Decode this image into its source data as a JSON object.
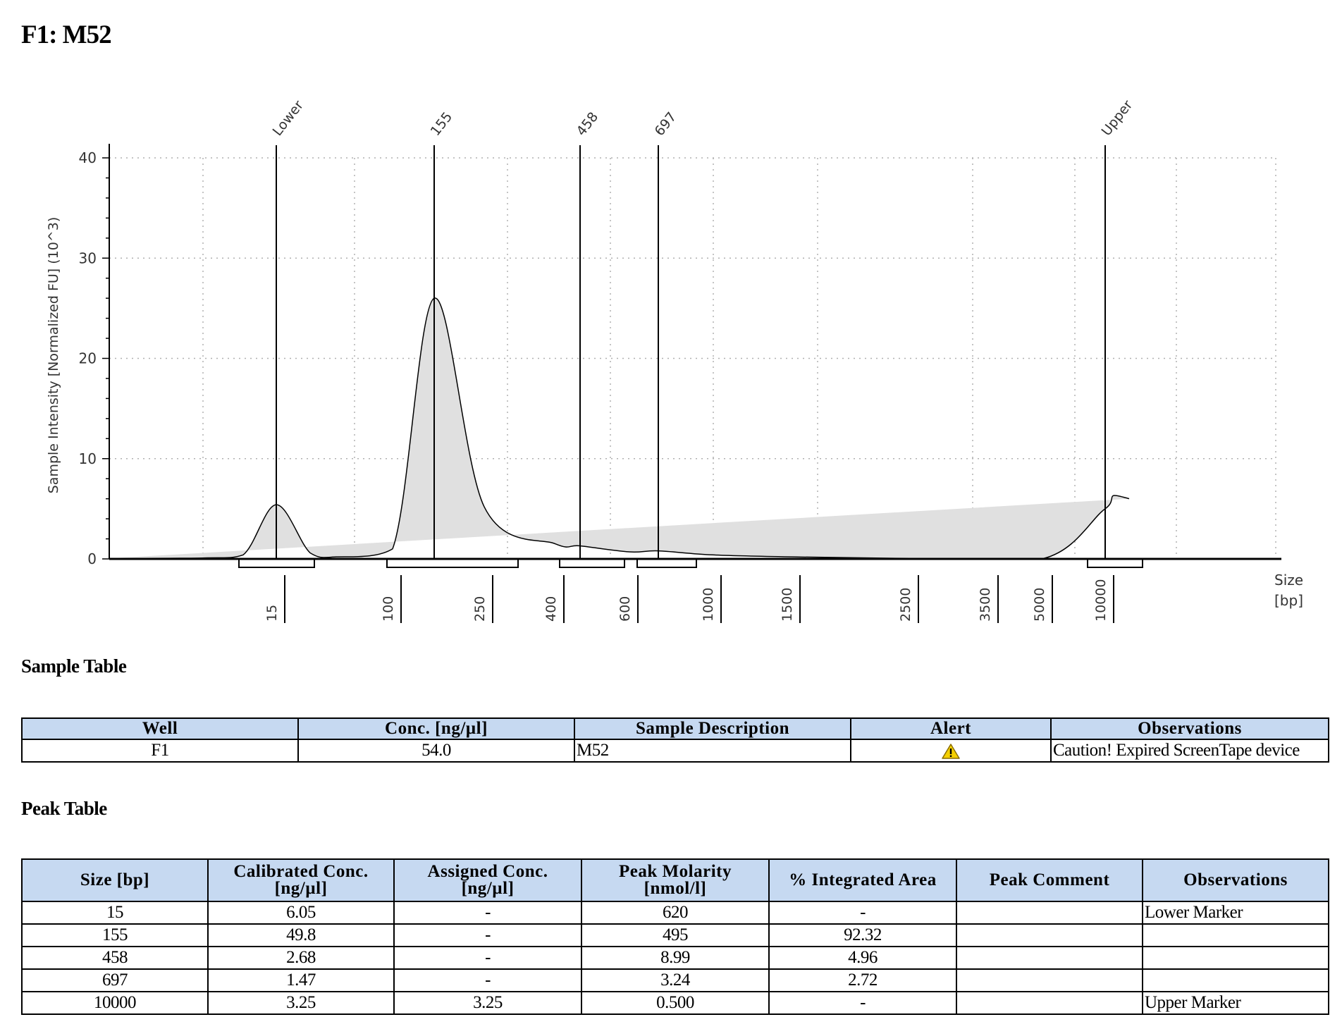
{
  "title": "F1: M52",
  "chart_data": {
    "type": "area",
    "ylabel": "Sample Intensity [Normalized FU] (10^3)",
    "xlabel_line1": "Size",
    "xlabel_line2": "[bp]",
    "ylim": [
      0,
      40
    ],
    "yticks": [
      0,
      10,
      20,
      30,
      40
    ],
    "grid": true,
    "x_ticks": [
      "15",
      "100",
      "250",
      "400",
      "600",
      "1000",
      "1500",
      "2500",
      "3500",
      "5000",
      "10000"
    ],
    "peak_labels": [
      "Lower",
      "155",
      "458",
      "697",
      "Upper"
    ],
    "trace": [
      [
        "",
        0.05
      ],
      [
        "",
        0.1
      ],
      [
        "",
        0.4
      ],
      [
        "15",
        5.4
      ],
      [
        "",
        0.6
      ],
      [
        "",
        0.2
      ],
      [
        "100",
        1.0
      ],
      [
        "155",
        26.0
      ],
      [
        "",
        6.0
      ],
      [
        "250",
        5.2
      ],
      [
        "400",
        1.5
      ],
      [
        "458",
        1.3
      ],
      [
        "600",
        0.7
      ],
      [
        "697",
        0.8
      ],
      [
        "1000",
        0.4
      ],
      [
        "1500",
        0.2
      ],
      [
        "2500",
        0.05
      ],
      [
        "5000",
        0.05
      ],
      [
        "10000",
        5.0
      ],
      [
        "",
        0.2
      ],
      [
        "",
        0.05
      ]
    ]
  },
  "sample_table_title": "Sample Table",
  "sample_table": {
    "headers": [
      "Well",
      "Conc. [ng/µl]",
      "Sample Description",
      "Alert",
      "Observations"
    ],
    "row": {
      "well": "F1",
      "conc": "54.0",
      "description": "M52",
      "alert_icon": "warning-icon",
      "observations": "Caution! Expired ScreenTape device"
    }
  },
  "peak_table_title": "Peak Table",
  "peak_table": {
    "headers": [
      {
        "l1": "Size [bp]",
        "l2": ""
      },
      {
        "l1": "Calibrated Conc.",
        "l2": "[ng/µl]"
      },
      {
        "l1": "Assigned Conc.",
        "l2": "[ng/µl]"
      },
      {
        "l1": "Peak Molarity",
        "l2": "[nmol/l]"
      },
      {
        "l1": "% Integrated Area",
        "l2": ""
      },
      {
        "l1": "Peak Comment",
        "l2": ""
      },
      {
        "l1": "Observations",
        "l2": ""
      }
    ],
    "rows": [
      [
        "15",
        "6.05",
        "-",
        "620",
        "-",
        "",
        "Lower Marker"
      ],
      [
        "155",
        "49.8",
        "-",
        "495",
        "92.32",
        "",
        ""
      ],
      [
        "458",
        "2.68",
        "-",
        "8.99",
        "4.96",
        "",
        ""
      ],
      [
        "697",
        "1.47",
        "-",
        "3.24",
        "2.72",
        "",
        ""
      ],
      [
        "10000",
        "3.25",
        "3.25",
        "0.500",
        "-",
        "",
        "Upper Marker"
      ]
    ]
  },
  "colors": {
    "header_bg": "#c6d9f1",
    "trace_fill": "#e0e0e0",
    "warning": "#f5d000"
  }
}
